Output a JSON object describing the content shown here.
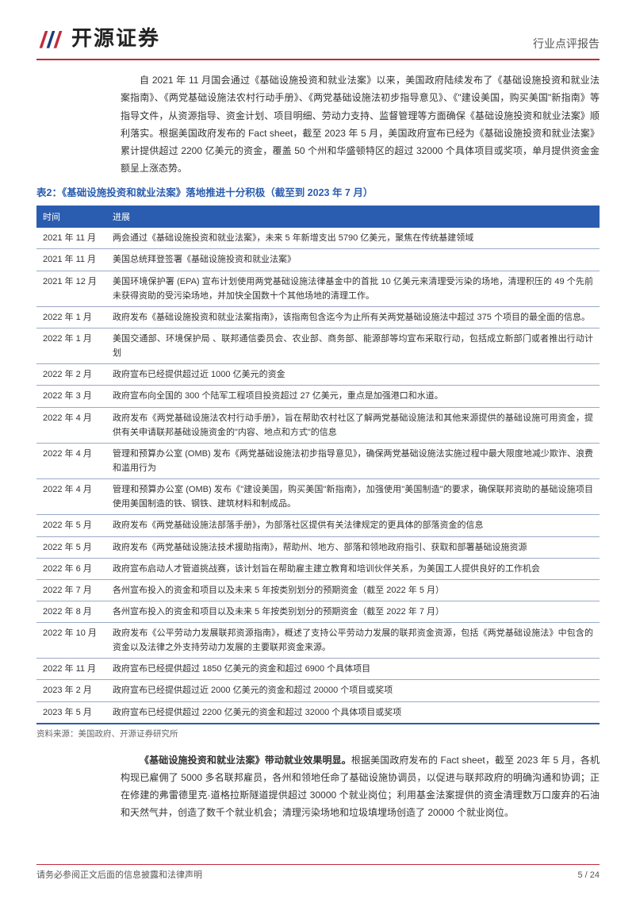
{
  "header": {
    "logo_text": "开源证券",
    "report_type": "行业点评报告"
  },
  "para1": "自 2021 年 11 月国会通过《基础设施投资和就业法案》以来，美国政府陆续发布了《基础设施投资和就业法案指南》、《两党基础设施法农村行动手册》、《两党基础设施法初步指导意见》、《\"建设美国，购买美国\"新指南》等指导文件，从资源指导、资金计划、项目明细、劳动力支持、监督管理等方面确保《基础设施投资和就业法案》顺利落实。根据美国政府发布的 Fact sheet，截至 2023 年 5 月，美国政府宣布已经为《基础设施投资和就业法案》累计提供超过 2200 亿美元的资金，覆盖 50 个州和华盛顿特区的超过 32000 个具体项目或奖项，单月提供资金金额呈上涨态势。",
  "table": {
    "title": "表2：《基础设施投资和就业法案》落地推进十分积极（截至到 2023 年 7 月）",
    "title_color": "#2a5db0",
    "header_bg": "#2a5db0",
    "header_text_color": "#ffffff",
    "border_color": "#9aa9c9",
    "columns": [
      "时间",
      "进展"
    ],
    "rows": [
      [
        "2021 年 11 月",
        "两会通过《基础设施投资和就业法案》，未来 5 年新增支出 5790 亿美元，聚焦在传统基建领域"
      ],
      [
        "2021 年 11 月",
        "美国总统拜登签署《基础设施投资和就业法案》"
      ],
      [
        "2021 年 12 月",
        "美国环境保护署 (EPA) 宣布计划使用两党基础设施法律基金中的首批 10 亿美元来清理受污染的场地，清理积压的 49 个先前未获得资助的受污染场地，并加快全国数十个其他场地的清理工作。"
      ],
      [
        "2022 年 1 月",
        "政府发布《基础设施投资和就业法案指南》，该指南包含迄今为止所有关两党基础设施法中超过 375 个项目的最全面的信息。"
      ],
      [
        "2022 年 1 月",
        "美国交通部、环境保护局 、联邦通信委员会、农业部、商务部、能源部等均宣布采取行动，包括成立新部门或者推出行动计划"
      ],
      [
        "2022 年 2 月",
        "政府宣布已经提供超过近 1000 亿美元的资金"
      ],
      [
        "2022 年 3 月",
        "政府宣布向全国的 300 个陆军工程项目投资超过 27 亿美元，重点是加强港口和水道。"
      ],
      [
        "2022 年 4 月",
        "政府发布《两党基础设施法农村行动手册》，旨在帮助农村社区了解两党基础设施法和其他来源提供的基础设施可用资金，提供有关申请联邦基础设施资金的\"内容、地点和方式\"的信息"
      ],
      [
        "2022 年 4 月",
        "管理和预算办公室 (OMB) 发布《两党基础设施法初步指导意见》，确保两党基础设施法实施过程中最大限度地减少欺诈、浪费和滥用行为"
      ],
      [
        "2022 年 4 月",
        "管理和预算办公室 (OMB) 发布《\"建设美国，购买美国\"新指南》，加强使用\"美国制造\"的要求，确保联邦资助的基础设施项目使用美国制造的铁、钢铁、建筑材料和制成品。"
      ],
      [
        "2022 年 5 月",
        "政府发布《两党基础设施法部落手册》，为部落社区提供有关法律规定的更具体的部落资金的信息"
      ],
      [
        "2022 年 5 月",
        "政府发布《两党基础设施法技术援助指南》，帮助州、地方、部落和领地政府指引、获取和部署基础设施资源"
      ],
      [
        "2022 年 6 月",
        "政府宣布启动人才管道挑战赛，该计划旨在帮助雇主建立教育和培训伙伴关系，为美国工人提供良好的工作机会"
      ],
      [
        "2022 年 7 月",
        "各州宣布投入的资金和项目以及未来 5 年按类别划分的预期资金（截至 2022 年 5 月）"
      ],
      [
        "2022 年 8 月",
        "各州宣布投入的资金和项目以及未来 5 年按类别划分的预期资金（截至 2022 年 7 月）"
      ],
      [
        "2022 年 10 月",
        "政府发布《公平劳动力发展联邦资源指南》，概述了支持公平劳动力发展的联邦资金资源，包括《两党基础设施法》中包含的资金以及法律之外支持劳动力发展的主要联邦资金来源。"
      ],
      [
        "2022 年 11 月",
        "政府宣布已经提供超过 1850 亿美元的资金和超过 6900 个具体项目"
      ],
      [
        "2023 年 2 月",
        "政府宣布已经提供超过近 2000 亿美元的资金和超过 20000 个项目或奖项"
      ],
      [
        "2023 年 5 月",
        "政府宣布已经提供超过 2200 亿美元的资金和超过 32000 个具体项目或奖项"
      ]
    ],
    "source": "资料来源：美国政府、开源证券研究所"
  },
  "para2_bold": "《基础设施投资和就业法案》带动就业效果明显。",
  "para2_rest": "根据美国政府发布的 Fact sheet，截至 2023 年 5 月，各机构现已雇佣了 5000 多名联邦雇员，各州和领地任命了基础设施协调员，以促进与联邦政府的明确沟通和协调；正在修建的弗雷德里克·道格拉斯隧道提供超过 30000 个就业岗位；利用基金法案提供的资金清理数万口废弃的石油和天然气井，创造了数千个就业机会；清理污染场地和垃圾填埋场创造了 20000 个就业岗位。",
  "footer": {
    "left": "请务必参阅正文后面的信息披露和法律声明",
    "right": "5 / 24"
  }
}
